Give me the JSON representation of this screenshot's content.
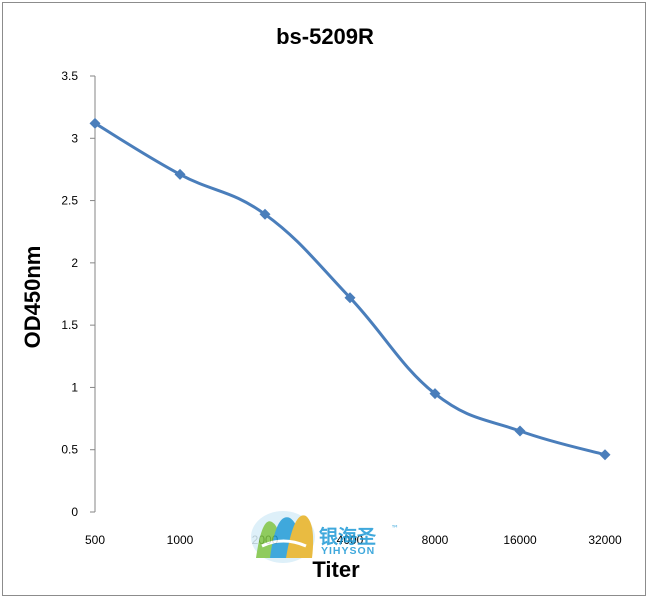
{
  "chart_data": {
    "type": "line",
    "title": "bs-5209R",
    "xlabel": "Titer",
    "ylabel": "OD450nm",
    "categories": [
      "500",
      "1000",
      "2000",
      "4000",
      "8000",
      "16000",
      "32000"
    ],
    "series": [
      {
        "values": [
          3.12,
          2.71,
          2.39,
          1.72,
          0.95,
          0.65,
          0.46
        ]
      }
    ],
    "ylim": [
      0,
      3.5
    ],
    "yticks": [
      "0",
      "0.5",
      "1",
      "1.5",
      "2",
      "2.5",
      "3",
      "3.5"
    ],
    "grid": false,
    "legend": "none",
    "line_color": "#4a7ebb",
    "marker": "diamond"
  },
  "watermark": {
    "text_cn": "银海圣",
    "text_en": "YIHYSON",
    "tm": "™",
    "colors": [
      "#1e9ad6",
      "#7cc242",
      "#e6b020"
    ]
  }
}
